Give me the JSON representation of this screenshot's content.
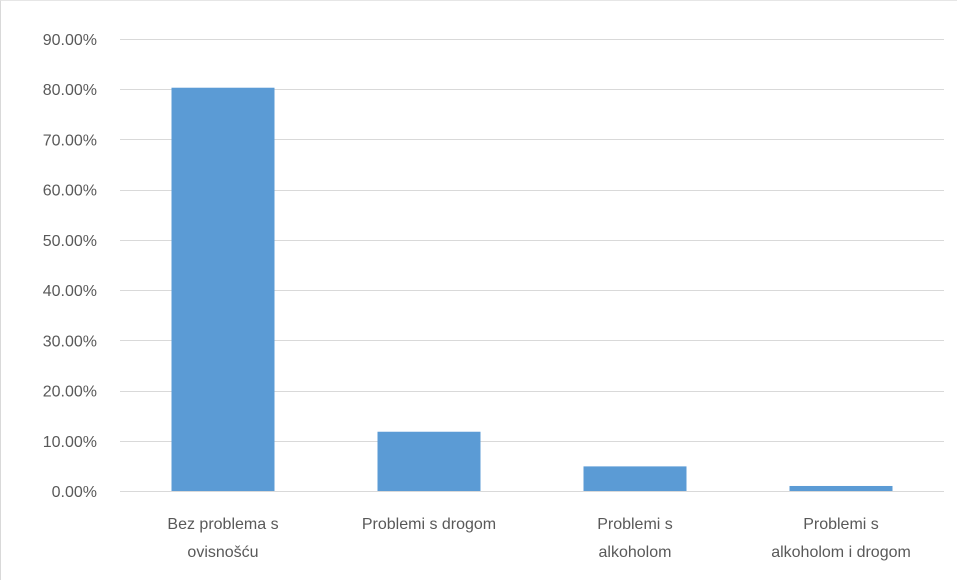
{
  "chart_data": {
    "type": "bar",
    "categories": [
      [
        "Bez problema s",
        "ovisnošću"
      ],
      [
        "Problemi s drogom"
      ],
      [
        "Problemi s",
        "alkoholom"
      ],
      [
        "Problemi s",
        "alkoholom i drogom"
      ]
    ],
    "values": [
      80.3,
      11.8,
      4.9,
      1.0
    ],
    "ylim": [
      0,
      90
    ],
    "y_ticks": [
      0,
      10,
      20,
      30,
      40,
      50,
      60,
      70,
      80,
      90
    ],
    "y_tick_labels": [
      "0.00%",
      "10.00%",
      "20.00%",
      "30.00%",
      "40.00%",
      "50.00%",
      "60.00%",
      "70.00%",
      "80.00%",
      "90.00%"
    ],
    "grid": true,
    "legend": "none",
    "bar_color": "#5b9bd5",
    "grid_color": "#d9d9d9",
    "text_color": "#595959"
  }
}
